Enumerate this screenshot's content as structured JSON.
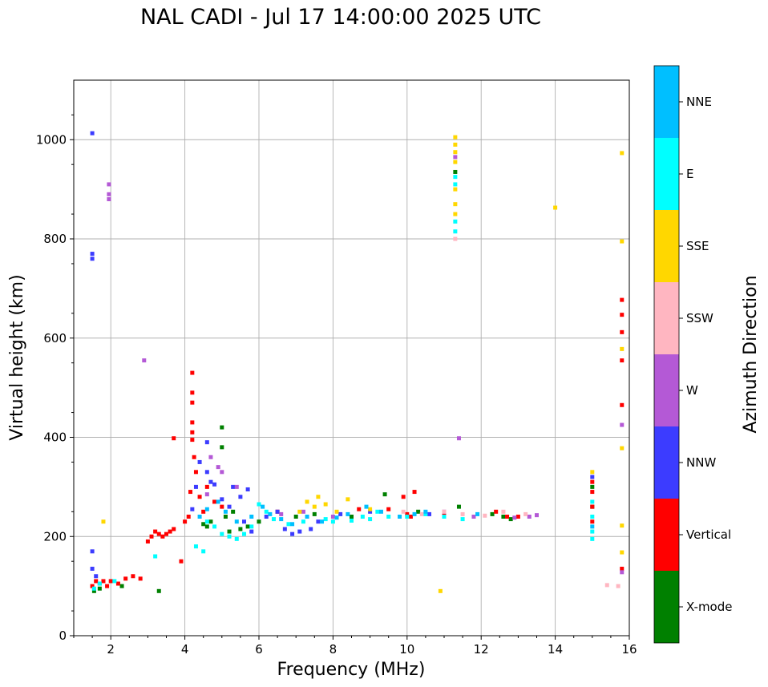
{
  "chart_data": {
    "type": "scatter",
    "title": "NAL CADI - Jul 17 14:00:00 2025 UTC",
    "xlabel": "Frequency (MHz)",
    "ylabel": "Virtual height (km)",
    "xlim": [
      1,
      16
    ],
    "ylim": [
      0,
      1120
    ],
    "xticks": [
      2,
      4,
      6,
      8,
      10,
      12,
      14,
      16
    ],
    "yticks": [
      0,
      200,
      400,
      600,
      800,
      1000
    ],
    "grid": true,
    "colorbar": {
      "label": "Azimuth Direction",
      "categories": [
        {
          "name": "X-mode",
          "color": "#008000"
        },
        {
          "name": "Vertical",
          "color": "#ff0000"
        },
        {
          "name": "NNW",
          "color": "#3c3cff"
        },
        {
          "name": "W",
          "color": "#b459d6"
        },
        {
          "name": "SSW",
          "color": "#ffb6c1"
        },
        {
          "name": "SSE",
          "color": "#ffd700"
        },
        {
          "name": "E",
          "color": "#00ffff"
        },
        {
          "name": "NNE",
          "color": "#00bfff"
        }
      ]
    },
    "series": [
      {
        "name": "X-mode",
        "points": [
          [
            1.55,
            90
          ],
          [
            1.7,
            95
          ],
          [
            2.3,
            100
          ],
          [
            3.3,
            90
          ],
          [
            4.5,
            225
          ],
          [
            4.6,
            220
          ],
          [
            4.7,
            230
          ],
          [
            5.0,
            420
          ],
          [
            5.0,
            380
          ],
          [
            5.1,
            240
          ],
          [
            5.2,
            210
          ],
          [
            5.3,
            250
          ],
          [
            5.5,
            215
          ],
          [
            5.7,
            220
          ],
          [
            6.0,
            230
          ],
          [
            7.0,
            240
          ],
          [
            7.5,
            245
          ],
          [
            8.5,
            240
          ],
          [
            9.4,
            285
          ],
          [
            10.3,
            250
          ],
          [
            11.4,
            260
          ],
          [
            12.3,
            245
          ],
          [
            12.6,
            240
          ],
          [
            12.8,
            235
          ],
          [
            11.3,
            935
          ],
          [
            15.0,
            260
          ],
          [
            15.0,
            300
          ]
        ]
      },
      {
        "name": "Vertical",
        "points": [
          [
            1.5,
            100
          ],
          [
            1.6,
            110
          ],
          [
            1.7,
            105
          ],
          [
            1.8,
            110
          ],
          [
            1.9,
            100
          ],
          [
            2.0,
            110
          ],
          [
            2.2,
            105
          ],
          [
            2.4,
            115
          ],
          [
            2.6,
            120
          ],
          [
            2.8,
            115
          ],
          [
            3.0,
            190
          ],
          [
            3.1,
            200
          ],
          [
            3.2,
            210
          ],
          [
            3.3,
            205
          ],
          [
            3.4,
            200
          ],
          [
            3.5,
            205
          ],
          [
            3.6,
            210
          ],
          [
            3.7,
            215
          ],
          [
            3.9,
            150
          ],
          [
            4.0,
            230
          ],
          [
            4.1,
            240
          ],
          [
            4.15,
            290
          ],
          [
            4.2,
            430
          ],
          [
            4.2,
            470
          ],
          [
            4.2,
            490
          ],
          [
            4.2,
            530
          ],
          [
            4.25,
            360
          ],
          [
            4.3,
            330
          ],
          [
            4.4,
            280
          ],
          [
            4.5,
            250
          ],
          [
            4.6,
            300
          ],
          [
            4.8,
            270
          ],
          [
            3.7,
            398
          ],
          [
            4.2,
            395
          ],
          [
            4.2,
            410
          ],
          [
            5.0,
            260
          ],
          [
            6.5,
            250
          ],
          [
            8.7,
            255
          ],
          [
            9.5,
            255
          ],
          [
            10.0,
            245
          ],
          [
            10.1,
            240
          ],
          [
            10.2,
            290
          ],
          [
            9.9,
            280
          ],
          [
            11.0,
            245
          ],
          [
            12.4,
            250
          ],
          [
            12.7,
            240
          ],
          [
            13.0,
            240
          ],
          [
            15.0,
            230
          ],
          [
            15.0,
            260
          ],
          [
            15.0,
            290
          ],
          [
            15.0,
            310
          ],
          [
            15.8,
            135
          ],
          [
            15.8,
            465
          ],
          [
            15.8,
            555
          ],
          [
            15.8,
            612
          ],
          [
            15.8,
            647
          ],
          [
            15.8,
            677
          ]
        ]
      },
      {
        "name": "NNW",
        "points": [
          [
            1.5,
            1013
          ],
          [
            1.5,
            770
          ],
          [
            1.5,
            760
          ],
          [
            1.5,
            170
          ],
          [
            1.5,
            135
          ],
          [
            1.6,
            120
          ],
          [
            4.2,
            255
          ],
          [
            4.3,
            300
          ],
          [
            4.4,
            350
          ],
          [
            4.6,
            330
          ],
          [
            4.6,
            390
          ],
          [
            4.7,
            310
          ],
          [
            4.8,
            305
          ],
          [
            5.0,
            275
          ],
          [
            5.2,
            260
          ],
          [
            5.3,
            300
          ],
          [
            5.5,
            280
          ],
          [
            5.6,
            230
          ],
          [
            5.7,
            295
          ],
          [
            5.8,
            210
          ],
          [
            6.2,
            240
          ],
          [
            6.5,
            250
          ],
          [
            6.7,
            215
          ],
          [
            6.9,
            205
          ],
          [
            7.1,
            210
          ],
          [
            7.4,
            215
          ],
          [
            7.6,
            230
          ],
          [
            8.2,
            245
          ],
          [
            9.0,
            250
          ],
          [
            10.6,
            245
          ],
          [
            15.0,
            320
          ]
        ]
      },
      {
        "name": "W",
        "points": [
          [
            1.95,
            890
          ],
          [
            1.95,
            910
          ],
          [
            1.95,
            880
          ],
          [
            2.9,
            555
          ],
          [
            4.7,
            360
          ],
          [
            4.9,
            340
          ],
          [
            5.0,
            330
          ],
          [
            4.6,
            285
          ],
          [
            5.4,
            300
          ],
          [
            6.6,
            245
          ],
          [
            7.2,
            250
          ],
          [
            8.0,
            240
          ],
          [
            11.0,
            250
          ],
          [
            11.8,
            240
          ],
          [
            12.9,
            238
          ],
          [
            13.3,
            240
          ],
          [
            13.5,
            243
          ],
          [
            11.3,
            965
          ],
          [
            15.8,
            128
          ],
          [
            15.8,
            425
          ],
          [
            11.4,
            398
          ]
        ]
      },
      {
        "name": "SSW",
        "points": [
          [
            9.9,
            250
          ],
          [
            10.4,
            245
          ],
          [
            11.0,
            250
          ],
          [
            11.5,
            245
          ],
          [
            12.1,
            242
          ],
          [
            12.6,
            250
          ],
          [
            13.2,
            245
          ],
          [
            15.4,
            102
          ],
          [
            15.7,
            100
          ],
          [
            11.3,
            800
          ]
        ]
      },
      {
        "name": "SSE",
        "points": [
          [
            1.8,
            230
          ],
          [
            7.1,
            250
          ],
          [
            7.3,
            270
          ],
          [
            7.5,
            260
          ],
          [
            7.6,
            280
          ],
          [
            7.8,
            265
          ],
          [
            8.1,
            250
          ],
          [
            8.4,
            275
          ],
          [
            9.0,
            255
          ],
          [
            11.3,
            1005
          ],
          [
            11.3,
            990
          ],
          [
            11.3,
            975
          ],
          [
            11.3,
            955
          ],
          [
            11.3,
            900
          ],
          [
            11.3,
            870
          ],
          [
            11.3,
            850
          ],
          [
            14.0,
            863
          ],
          [
            15.0,
            330
          ],
          [
            15.8,
            168
          ],
          [
            15.8,
            222
          ],
          [
            15.8,
            378
          ],
          [
            15.8,
            578
          ],
          [
            15.8,
            795
          ],
          [
            15.8,
            973
          ],
          [
            10.9,
            90
          ]
        ]
      },
      {
        "name": "E",
        "points": [
          [
            1.55,
            95
          ],
          [
            1.7,
            105
          ],
          [
            2.1,
            110
          ],
          [
            3.2,
            160
          ],
          [
            4.3,
            180
          ],
          [
            4.5,
            170
          ],
          [
            4.6,
            230
          ],
          [
            4.8,
            220
          ],
          [
            5.0,
            205
          ],
          [
            5.2,
            200
          ],
          [
            5.4,
            195
          ],
          [
            5.6,
            205
          ],
          [
            5.8,
            220
          ],
          [
            6.0,
            265
          ],
          [
            6.2,
            250
          ],
          [
            6.4,
            235
          ],
          [
            6.8,
            225
          ],
          [
            7.2,
            230
          ],
          [
            7.8,
            235
          ],
          [
            8.0,
            230
          ],
          [
            8.5,
            232
          ],
          [
            9.0,
            235
          ],
          [
            9.5,
            240
          ],
          [
            10.0,
            240
          ],
          [
            10.5,
            245
          ],
          [
            11.0,
            240
          ],
          [
            11.5,
            235
          ],
          [
            11.3,
            925
          ],
          [
            11.3,
            910
          ],
          [
            11.3,
            835
          ],
          [
            11.3,
            815
          ],
          [
            15.0,
            195
          ],
          [
            15.0,
            210
          ],
          [
            15.0,
            240
          ],
          [
            15.0,
            270
          ],
          [
            9.2,
            250
          ],
          [
            8.8,
            240
          ]
        ]
      },
      {
        "name": "NNE",
        "points": [
          [
            4.4,
            240
          ],
          [
            4.6,
            255
          ],
          [
            4.9,
            270
          ],
          [
            5.1,
            250
          ],
          [
            5.4,
            230
          ],
          [
            5.8,
            240
          ],
          [
            6.1,
            260
          ],
          [
            6.3,
            245
          ],
          [
            6.6,
            235
          ],
          [
            6.9,
            225
          ],
          [
            7.3,
            240
          ],
          [
            7.7,
            230
          ],
          [
            8.1,
            238
          ],
          [
            8.4,
            245
          ],
          [
            8.9,
            260
          ],
          [
            9.3,
            250
          ],
          [
            9.8,
            240
          ],
          [
            10.2,
            245
          ],
          [
            10.5,
            250
          ],
          [
            11.9,
            245
          ],
          [
            15.0,
            220
          ]
        ]
      }
    ]
  }
}
